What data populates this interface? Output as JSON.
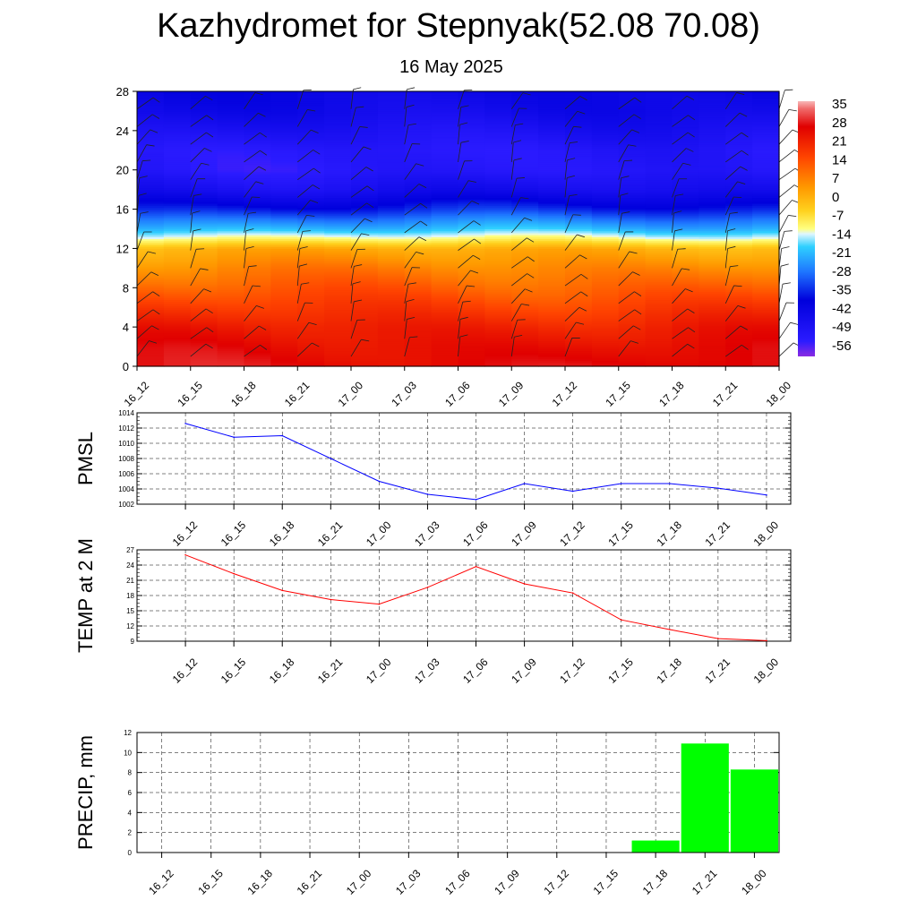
{
  "title": "Kazhydromet for Stepnyak(52.08 70.08)",
  "subtitle": "16 May 2025",
  "times": [
    "16_12",
    "16_15",
    "16_18",
    "16_21",
    "17_00",
    "17_03",
    "17_06",
    "17_09",
    "17_12",
    "17_15",
    "17_18",
    "17_21",
    "18_00"
  ],
  "colors": {
    "pmsl_line": "#0000ff",
    "temp_line": "#ff0000",
    "precip_bar": "#00ff00",
    "grid": "#000000"
  },
  "chart_data": [
    {
      "type": "heatmap",
      "title": "Kazhydromet for Stepnyak(52.08 70.08)",
      "subtitle": "16 May 2025",
      "x_ticks": [
        "16_12",
        "16_15",
        "16_18",
        "16_21",
        "17_00",
        "17_03",
        "17_06",
        "17_09",
        "17_12",
        "17_15",
        "17_18",
        "17_21",
        "18_00"
      ],
      "y_ticks": [
        0,
        4,
        8,
        12,
        16,
        20,
        24,
        28
      ],
      "ylim": [
        0,
        28
      ],
      "colorbar_labels": [
        "35",
        "28",
        "21",
        "14",
        "7",
        "0",
        "-7",
        "-14",
        "-21",
        "-28",
        "-35",
        "-42",
        "-49",
        "-56"
      ],
      "colorbar_range": [
        -60,
        38
      ],
      "temperature_profile": {
        "levels": [
          0,
          2,
          4,
          6,
          8,
          10,
          12,
          13,
          14,
          16,
          18,
          20,
          22,
          24,
          26,
          28
        ],
        "values": [
          28,
          26,
          23,
          18,
          13,
          8,
          2,
          -10,
          -20,
          -35,
          -46,
          -52,
          -52,
          -48,
          -44,
          -42
        ]
      },
      "overlay": "wind barbs"
    },
    {
      "type": "line",
      "ylabel": "PMSL",
      "ylim": [
        1002,
        1014
      ],
      "y_ticks": [
        1002,
        1004,
        1006,
        1008,
        1010,
        1012,
        1014
      ],
      "categories": [
        "16_12",
        "16_15",
        "16_18",
        "16_21",
        "17_00",
        "17_03",
        "17_06",
        "17_09",
        "17_12",
        "17_15",
        "17_18",
        "17_21",
        "18_00"
      ],
      "values": [
        1012.6,
        1010.8,
        1011.0,
        1008.0,
        1005.0,
        1003.3,
        1002.6,
        1004.7,
        1003.7,
        1004.7,
        1004.7,
        1004.1,
        1003.2
      ],
      "grid": true
    },
    {
      "type": "line",
      "ylabel": "TEMP at 2 M",
      "ylim": [
        9,
        27
      ],
      "y_ticks": [
        9,
        12,
        15,
        18,
        21,
        24,
        27
      ],
      "categories": [
        "16_12",
        "16_15",
        "16_18",
        "16_21",
        "17_00",
        "17_03",
        "17_06",
        "17_09",
        "17_12",
        "17_15",
        "17_18",
        "17_21",
        "18_00"
      ],
      "values": [
        26.0,
        22.3,
        19.0,
        17.2,
        16.3,
        19.6,
        23.7,
        20.3,
        18.5,
        13.2,
        11.3,
        9.5,
        9.1
      ],
      "grid": true
    },
    {
      "type": "bar",
      "ylabel": "PRECIP, mm",
      "ylim": [
        0,
        12
      ],
      "y_ticks": [
        0,
        2,
        4,
        6,
        8,
        10,
        12
      ],
      "categories": [
        "16_12",
        "16_15",
        "16_18",
        "16_21",
        "17_00",
        "17_03",
        "17_06",
        "17_09",
        "17_12",
        "17_15",
        "17_18",
        "17_21",
        "18_00"
      ],
      "values": [
        0,
        0,
        0,
        0,
        0,
        0,
        0,
        0,
        0,
        0,
        1.2,
        10.9,
        8.3
      ],
      "grid": true
    }
  ]
}
